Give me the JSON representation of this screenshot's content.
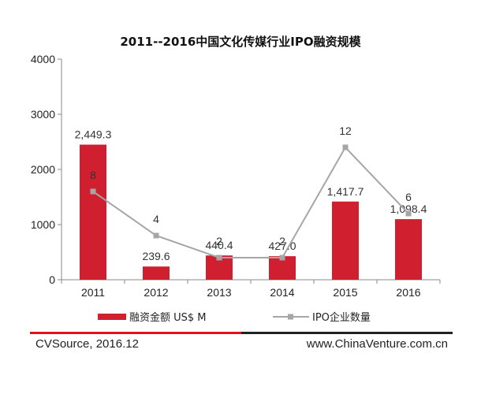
{
  "chart_data": {
    "type": "bar+line",
    "title": "2011--2016中国文化传媒行业IPO融资规模",
    "categories": [
      "2011",
      "2012",
      "2013",
      "2014",
      "2015",
      "2016"
    ],
    "series": [
      {
        "name": "融资金额 US$ M",
        "type": "bar",
        "values": [
          2449.3,
          239.6,
          440.4,
          427.0,
          1417.7,
          1098.4
        ],
        "labels": [
          "2,449.3",
          "239.6",
          "440.4",
          "427.0",
          "1,417.7",
          "1,098.4"
        ],
        "color": "#d02030"
      },
      {
        "name": "IPO企业数量",
        "type": "line",
        "values": [
          8,
          4,
          2,
          2,
          12,
          6
        ],
        "labels": [
          "8",
          "4",
          "2",
          "2",
          "12",
          "6"
        ],
        "color": "#a6a6a6"
      }
    ],
    "yaxis": {
      "ylim": [
        0,
        4000
      ],
      "ticks": [
        "0",
        "1000",
        "2000",
        "3000",
        "4000"
      ]
    },
    "legend_position": "bottom",
    "grid": false
  },
  "footer": {
    "source": "CVSource, 2016.12",
    "website": "www.ChinaVenture.com.cn"
  },
  "colors": {
    "bar": "#d02030",
    "line": "#a6a6a6",
    "divider_red": "#e2121c",
    "divider_dark": "#222222"
  }
}
